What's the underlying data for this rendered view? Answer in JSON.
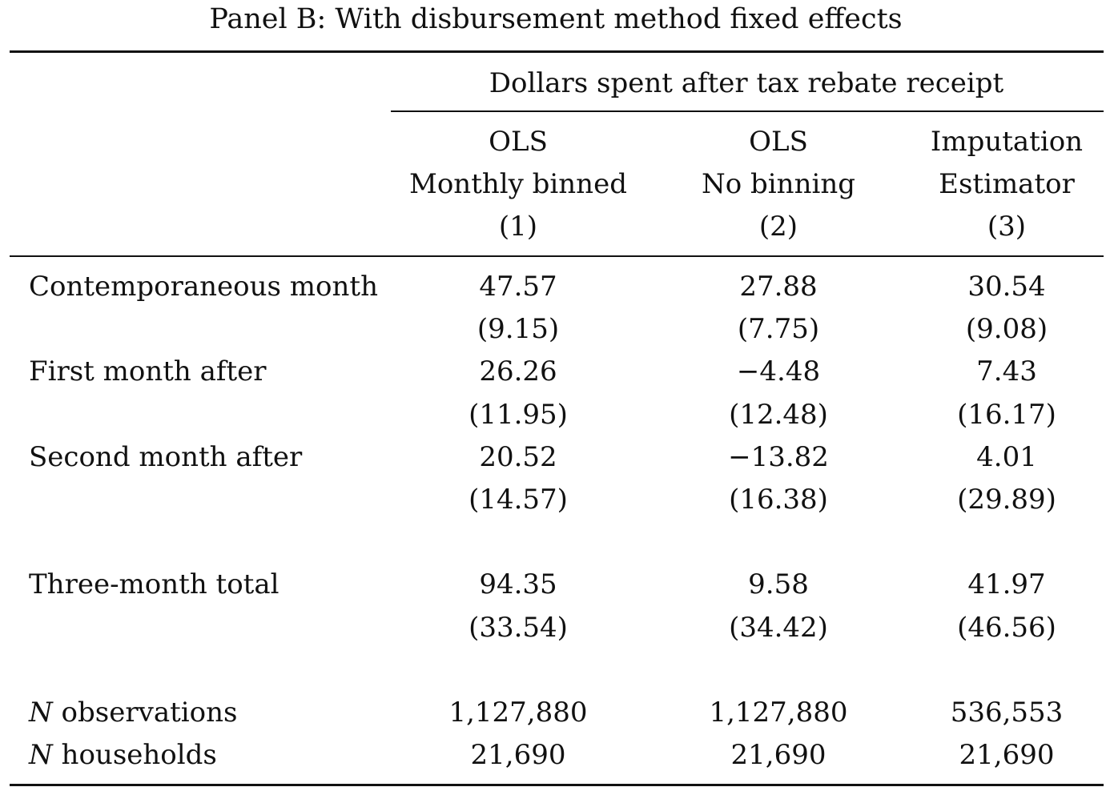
{
  "panel_title": "Panel B: With disbursement method fixed effects",
  "group_header": "Dollars spent after tax rebate receipt",
  "columns": [
    {
      "line1": "OLS",
      "line2": "Monthly binned",
      "line3": "(1)"
    },
    {
      "line1": "OLS",
      "line2": "No binning",
      "line3": "(2)"
    },
    {
      "line1": "Imputation",
      "line2": "Estimator",
      "line3": "(3)"
    }
  ],
  "rows": [
    {
      "label": "Contemporaneous month",
      "coef": [
        "47.57",
        "27.88",
        "30.54"
      ],
      "se": [
        "(9.15)",
        "(7.75)",
        "(9.08)"
      ]
    },
    {
      "label": "First month after",
      "coef": [
        "26.26",
        "−4.48",
        "7.43"
      ],
      "se": [
        "(11.95)",
        "(12.48)",
        "(16.17)"
      ]
    },
    {
      "label": "Second month after",
      "coef": [
        "20.52",
        "−13.82",
        "4.01"
      ],
      "se": [
        "(14.57)",
        "(16.38)",
        "(29.89)"
      ]
    },
    {
      "label": "Three-month total",
      "coef": [
        "94.35",
        "9.58",
        "41.97"
      ],
      "se": [
        "(33.54)",
        "(34.42)",
        "(46.56)"
      ]
    }
  ],
  "stats": [
    {
      "italic": "N",
      "label": " observations",
      "values": [
        "1,127,880",
        "1,127,880",
        "536,553"
      ]
    },
    {
      "italic": "N",
      "label": " households",
      "values": [
        "21,690",
        "21,690",
        "21,690"
      ]
    }
  ]
}
